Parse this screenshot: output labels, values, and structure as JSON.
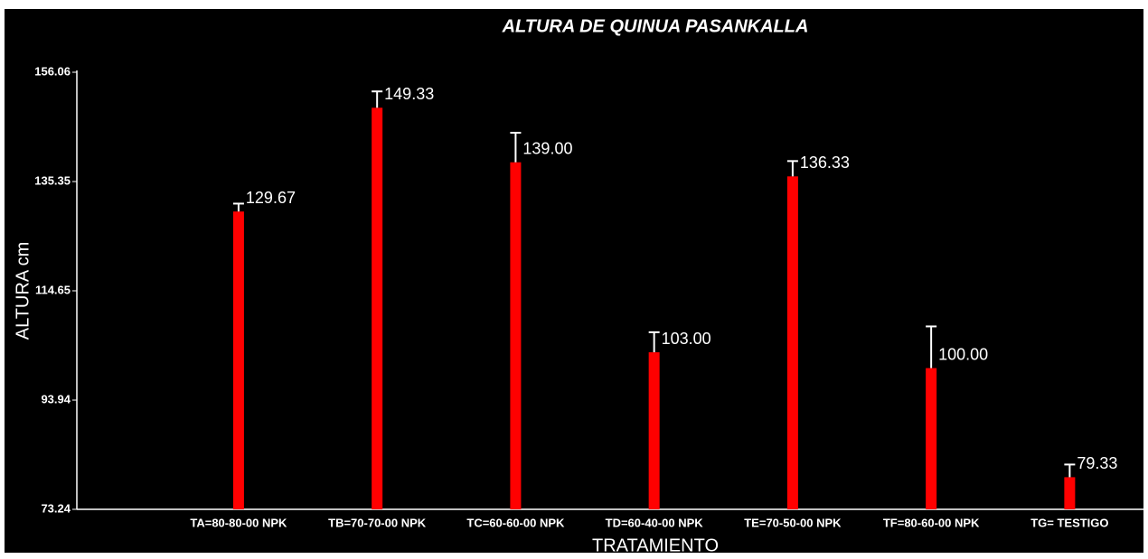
{
  "chart_data": {
    "type": "bar",
    "title": "ALTURA DE QUINUA PASANKALLA",
    "x_label": "TRATAMIENTO",
    "y_label": "ALTURA cm",
    "categories": [
      "TA=80-80-00 NPK",
      "TB=70-70-00 NPK",
      "TC=60-60-00 NPK",
      "TD=60-40-00 NPK",
      "TE=70-50-00 NPK",
      "TF=80-60-00 NPK",
      "TG= TESTIGO"
    ],
    "values": [
      129.67,
      149.33,
      139,
      103,
      136.33,
      100,
      79.33
    ],
    "value_labels": [
      "129.67",
      "149.33",
      "139.00",
      "103.00",
      "136.33",
      "100.00",
      "79.33"
    ],
    "errors": [
      1.5,
      3.1,
      5.6,
      3.8,
      2.9,
      7.9,
      2.4
    ],
    "color": "#ff0000",
    "ylim": [
      73.24,
      156.06
    ],
    "yticks": [
      73.24,
      93.94,
      114.65,
      135.35,
      156.06
    ],
    "grid": false
  }
}
